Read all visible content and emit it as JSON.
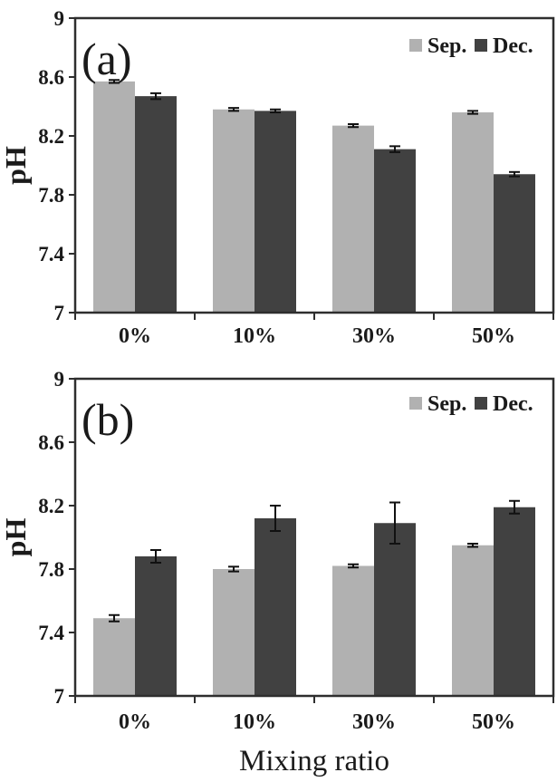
{
  "figure_caption": "",
  "chart_data": [
    {
      "type": "bar",
      "panel_label": "(a)",
      "title": "",
      "ylabel": "pH",
      "xlabel": "",
      "categories": [
        "0%",
        "10%",
        "30%",
        "50%"
      ],
      "ylim": [
        7,
        9
      ],
      "yticks": [
        "7",
        "7.4",
        "7.8",
        "8.2",
        "8.6",
        "9"
      ],
      "grid": false,
      "legend_position": "top-right-inside",
      "series": [
        {
          "name": "Sep.",
          "color": "#b1b1b1",
          "values": [
            8.57,
            8.38,
            8.27,
            8.36
          ],
          "errors": [
            0.01,
            0.01,
            0.01,
            0.01
          ]
        },
        {
          "name": "Dec.",
          "color": "#414141",
          "values": [
            8.47,
            8.37,
            8.11,
            7.94
          ],
          "errors": [
            0.02,
            0.01,
            0.02,
            0.015
          ]
        }
      ]
    },
    {
      "type": "bar",
      "panel_label": "(b)",
      "title": "",
      "ylabel": "pH",
      "xlabel": "Mixing ratio",
      "categories": [
        "0%",
        "10%",
        "30%",
        "50%"
      ],
      "ylim": [
        7,
        9
      ],
      "yticks": [
        "7",
        "7.4",
        "7.8",
        "8.2",
        "8.6",
        "9"
      ],
      "grid": false,
      "legend_position": "top-right-inside",
      "series": [
        {
          "name": "Sep.",
          "color": "#b1b1b1",
          "values": [
            7.49,
            7.8,
            7.82,
            7.95
          ],
          "errors": [
            0.02,
            0.015,
            0.01,
            0.01
          ]
        },
        {
          "name": "Dec.",
          "color": "#414141",
          "values": [
            7.88,
            8.12,
            8.09,
            8.19
          ],
          "errors": [
            0.04,
            0.08,
            0.13,
            0.04
          ]
        }
      ]
    }
  ],
  "style": {
    "frame_color": "#2e2e2e",
    "error_bar_color": "#111111",
    "text_color": "#1a1a1a"
  }
}
